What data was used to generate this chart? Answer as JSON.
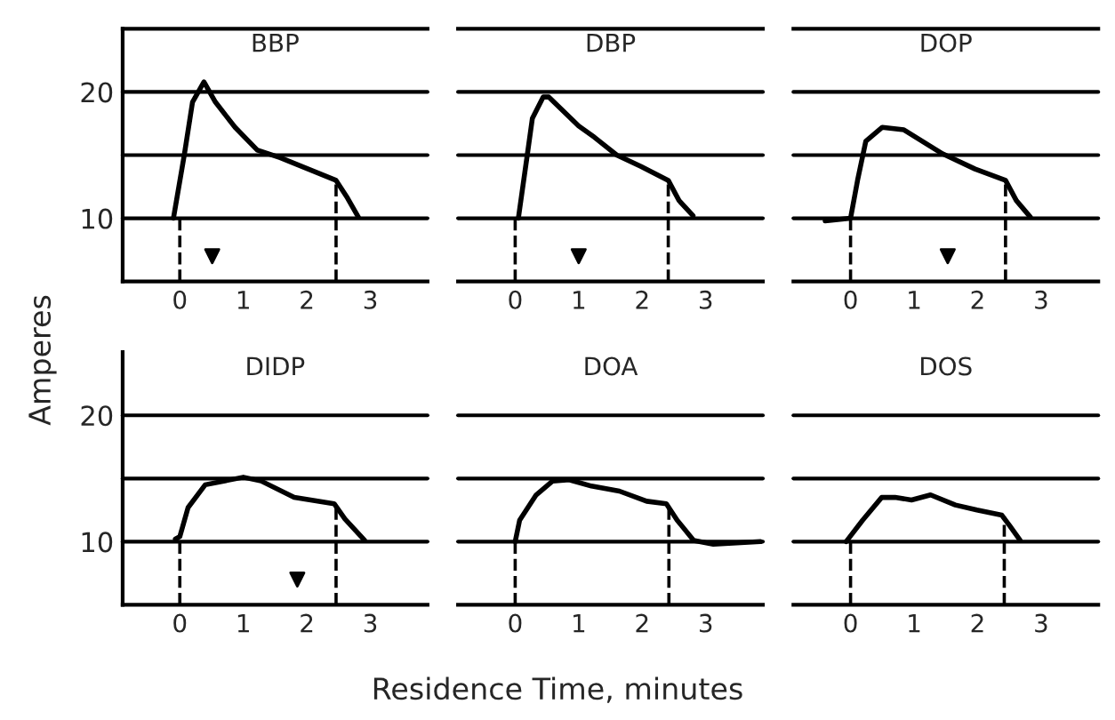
{
  "chart_data": [
    {
      "type": "line",
      "title": "BBP",
      "ylabel": "Amperes",
      "xlim": [
        -0.9,
        3.9
      ],
      "xticks": [
        0,
        1,
        2,
        3
      ],
      "ylim": [
        5,
        25
      ],
      "yticks": [
        10,
        20
      ],
      "ref_lines": [
        {
          "axis": "y",
          "value": 15
        }
      ],
      "grid": "y",
      "series": [
        {
          "color": "#000000",
          "line_style": "solid",
          "x": [
            -0.1,
            0.07,
            0.2,
            0.38,
            0.56,
            0.87,
            1.22,
            1.58,
            2.02,
            2.46,
            2.64,
            2.81
          ],
          "values": [
            10,
            15,
            19.2,
            20.8,
            19.2,
            17.2,
            15.4,
            14.8,
            13.9,
            13.0,
            11.6,
            10.1
          ]
        },
        {
          "color": "#000000",
          "line_style": "dashed",
          "x": [
            0,
            0
          ],
          "values": [
            5,
            10
          ]
        },
        {
          "color": "#000000",
          "line_style": "dashed",
          "x": [
            2.46,
            2.46
          ],
          "values": [
            5,
            13.0
          ]
        },
        {
          "type": "scatter",
          "marker": "triangle",
          "color": "#000000",
          "x": [
            0.51
          ],
          "values": [
            7
          ]
        }
      ]
    },
    {
      "type": "line",
      "title": "DBP",
      "xlim": [
        -0.9,
        3.9
      ],
      "xticks": [
        0,
        1,
        2,
        3
      ],
      "ylim": [
        5,
        25
      ],
      "yticks": [
        10,
        20
      ],
      "ref_lines": [
        {
          "axis": "y",
          "value": 15
        }
      ],
      "grid": "y",
      "tick_labels": "x",
      "series": [
        {
          "color": "#000000",
          "line_style": "solid",
          "x": [
            0.05,
            0.19,
            0.27,
            0.44,
            0.53,
            1.0,
            1.25,
            1.6,
            1.98,
            2.41,
            2.58,
            2.8
          ],
          "values": [
            10,
            15,
            17.9,
            19.6,
            19.6,
            17.3,
            16.4,
            15,
            14.1,
            13.0,
            11.4,
            10.2
          ]
        },
        {
          "color": "#000000",
          "line_style": "dashed",
          "x": [
            0,
            0
          ],
          "values": [
            5,
            10
          ]
        },
        {
          "color": "#000000",
          "line_style": "dashed",
          "x": [
            2.41,
            2.41
          ],
          "values": [
            5,
            13.0
          ]
        },
        {
          "type": "scatter",
          "marker": "triangle",
          "color": "#000000",
          "x": [
            1.0
          ],
          "values": [
            7
          ]
        }
      ]
    },
    {
      "type": "line",
      "title": "DOP",
      "xlim": [
        -0.9,
        3.9
      ],
      "xticks": [
        0,
        1,
        2,
        3
      ],
      "ylim": [
        5,
        25
      ],
      "yticks": [
        10,
        20
      ],
      "ref_lines": [
        {
          "axis": "y",
          "value": 15
        }
      ],
      "grid": "y",
      "tick_labels": "x",
      "series": [
        {
          "color": "#000000",
          "line_style": "solid",
          "x": [
            -0.4,
            0,
            0.11,
            0.24,
            0.5,
            0.84,
            1.45,
            1.96,
            2.44,
            2.61,
            2.83
          ],
          "values": [
            9.8,
            10,
            13,
            16.1,
            17.2,
            17,
            15.1,
            13.9,
            13.0,
            11.4,
            10.1
          ]
        },
        {
          "color": "#000000",
          "line_style": "dashed",
          "x": [
            0,
            0
          ],
          "values": [
            5,
            10
          ]
        },
        {
          "color": "#000000",
          "line_style": "dashed",
          "x": [
            2.44,
            2.44
          ],
          "values": [
            5,
            13.0
          ]
        },
        {
          "type": "scatter",
          "marker": "triangle",
          "color": "#000000",
          "x": [
            1.53
          ],
          "values": [
            7
          ]
        }
      ]
    },
    {
      "type": "line",
      "title": "DIDP",
      "xlim": [
        -0.9,
        3.9
      ],
      "xticks": [
        0,
        1,
        2,
        3
      ],
      "ylim": [
        5,
        25
      ],
      "yticks": [
        10,
        20
      ],
      "ref_lines": [
        {
          "axis": "y",
          "value": 15
        }
      ],
      "grid": "y",
      "series": [
        {
          "color": "#000000",
          "line_style": "solid",
          "x": [
            -0.07,
            0,
            0.13,
            0.4,
            1.0,
            1.28,
            1.8,
            2.43,
            2.6,
            2.91
          ],
          "values": [
            10.2,
            10.4,
            12.7,
            14.5,
            15.1,
            14.8,
            13.5,
            13.0,
            11.8,
            10.1
          ]
        },
        {
          "color": "#000000",
          "line_style": "dashed",
          "x": [
            0,
            0
          ],
          "values": [
            5,
            10.4
          ]
        },
        {
          "color": "#000000",
          "line_style": "dashed",
          "x": [
            2.46,
            2.46
          ],
          "values": [
            5,
            13.0
          ]
        },
        {
          "type": "scatter",
          "marker": "triangle",
          "color": "#000000",
          "x": [
            1.85
          ],
          "values": [
            7
          ]
        }
      ]
    },
    {
      "type": "line",
      "title": "DOA",
      "xlabel": "Residence Time, minutes",
      "xlim": [
        -0.9,
        3.9
      ],
      "xticks": [
        0,
        1,
        2,
        3
      ],
      "ylim": [
        5,
        20
      ],
      "yticks": [
        10,
        20
      ],
      "ref_lines": [
        {
          "axis": "y",
          "value": 15
        }
      ],
      "grid": "y",
      "tick_labels": "x",
      "series": [
        {
          "color": "#000000",
          "line_style": "solid",
          "x": [
            0,
            0.07,
            0.33,
            0.59,
            0.85,
            1.2,
            1.64,
            2.07,
            2.38,
            2.55,
            2.81,
            3.12,
            3.86
          ],
          "values": [
            10,
            11.7,
            13.7,
            14.8,
            14.9,
            14.4,
            14,
            13.2,
            13.0,
            11.7,
            10.1,
            9.8,
            10
          ]
        },
        {
          "color": "#000000",
          "line_style": "dashed",
          "x": [
            0,
            0
          ],
          "values": [
            5,
            10
          ]
        },
        {
          "color": "#000000",
          "line_style": "dashed",
          "x": [
            2.42,
            2.42
          ],
          "values": [
            5,
            12.9
          ]
        }
      ]
    },
    {
      "type": "line",
      "title": "DOS",
      "xlim": [
        -0.9,
        3.9
      ],
      "xticks": [
        0,
        1,
        2,
        3
      ],
      "ylim": [
        5,
        20
      ],
      "yticks": [
        10,
        20
      ],
      "ref_lines": [
        {
          "axis": "y",
          "value": 15
        }
      ],
      "grid": "y",
      "tick_labels": "x",
      "series": [
        {
          "color": "#000000",
          "line_style": "solid",
          "x": [
            -0.07,
            0.19,
            0.49,
            0.7,
            0.96,
            1.26,
            1.65,
            1.99,
            2.38,
            2.5,
            2.67
          ],
          "values": [
            10,
            11.7,
            13.5,
            13.5,
            13.3,
            13.7,
            12.9,
            12.5,
            12.1,
            11.3,
            10.1
          ]
        },
        {
          "color": "#000000",
          "line_style": "dashed",
          "x": [
            0,
            0
          ],
          "values": [
            5,
            10
          ]
        },
        {
          "color": "#000000",
          "line_style": "dashed",
          "x": [
            2.42,
            2.42
          ],
          "values": [
            5,
            12.0
          ]
        }
      ]
    }
  ]
}
